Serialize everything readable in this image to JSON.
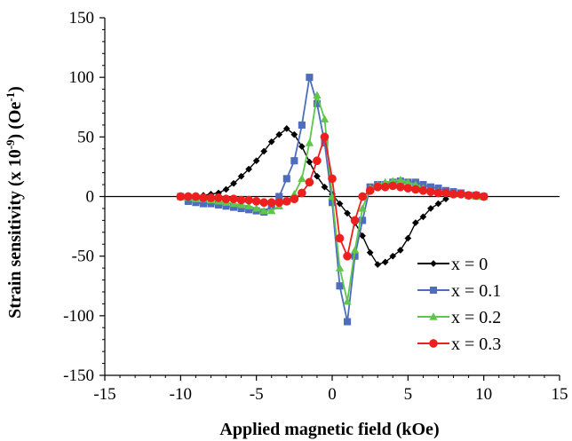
{
  "chart_data": {
    "type": "line",
    "xlabel": "Applied magnetic field  (kOe)",
    "ylabel": "Strain sensitivity  (x 10",
    "ylabel_sup1": "-9",
    "ylabel_mid": ") (Oe",
    "ylabel_sup2": "-1",
    "ylabel_end": ")",
    "xlim": [
      -15,
      15
    ],
    "ylim": [
      -150,
      150
    ],
    "xticks": [
      -15,
      -10,
      -5,
      0,
      5,
      10,
      15
    ],
    "yticks": [
      -150,
      -100,
      -50,
      0,
      50,
      100,
      150
    ],
    "grid": false,
    "legend_position": "bottom-right",
    "series": [
      {
        "name": "x = 0",
        "color": "#000000",
        "marker": "diamond",
        "x": [
          -10,
          -9.5,
          -9,
          -8.5,
          -8,
          -7.5,
          -7,
          -6.5,
          -6,
          -5.5,
          -5,
          -4.5,
          -4,
          -3.5,
          -3,
          -2.5,
          -2,
          -1.5,
          -1,
          -0.5,
          0,
          0.5,
          1,
          1.5,
          2,
          2.5,
          3,
          3.5,
          4,
          4.5,
          5,
          5.5,
          6,
          6.5,
          7,
          7.5
        ],
        "y": [
          0,
          0,
          0,
          1,
          2,
          3,
          6,
          11,
          17,
          23,
          30,
          38,
          46,
          52,
          57,
          52,
          42,
          29,
          17,
          8,
          2,
          -6,
          -14,
          -22,
          -33,
          -47,
          -57,
          -55,
          -50,
          -45,
          -35,
          -22,
          -17,
          -10,
          -6,
          -2
        ]
      },
      {
        "name": "x = 0.1",
        "color": "#4f6dbd",
        "marker": "square",
        "x": [
          -10,
          -9.5,
          -9,
          -8.5,
          -8,
          -7.5,
          -7,
          -6.5,
          -6,
          -5.5,
          -5,
          -4.5,
          -4,
          -3.5,
          -3,
          -2.5,
          -2,
          -1.5,
          -1,
          -0.5,
          0,
          0.5,
          1,
          1.5,
          2,
          2.5,
          3,
          3.5,
          4,
          4.5,
          5,
          5.5,
          6,
          6.5,
          7,
          7.5,
          8,
          8.5,
          9,
          9.5,
          10
        ],
        "y": [
          0,
          -4,
          -5,
          -6,
          -6,
          -7,
          -8,
          -9,
          -10,
          -11,
          -12,
          -13,
          -8,
          0,
          15,
          30,
          60,
          100,
          78,
          45,
          -5,
          -75,
          -105,
          -50,
          -20,
          8,
          10,
          10,
          12,
          13,
          12,
          12,
          10,
          8,
          7,
          5,
          4,
          3,
          1,
          1,
          0
        ]
      },
      {
        "name": "x = 0.2",
        "color": "#5ec648",
        "marker": "triangle",
        "x": [
          -10,
          -9.5,
          -9,
          -8.5,
          -8,
          -7.5,
          -7,
          -6.5,
          -6,
          -5.5,
          -5,
          -4.5,
          -4,
          -3.5,
          -3,
          -2.5,
          -2,
          -1.5,
          -1,
          -0.5,
          0,
          0.5,
          1,
          1.5,
          2,
          2.5,
          3,
          3.5,
          4,
          4.5,
          5,
          5.5,
          6,
          6.5,
          7,
          7.5,
          8,
          8.5,
          9,
          9.5,
          10
        ],
        "y": [
          0,
          -1,
          -2,
          -2,
          -3,
          -4,
          -5,
          -6,
          -7,
          -8,
          -10,
          -12,
          -12,
          -8,
          -4,
          2,
          15,
          45,
          85,
          65,
          0,
          -60,
          -88,
          -45,
          -10,
          7,
          10,
          12,
          13,
          14,
          12,
          10,
          7,
          5,
          4,
          3,
          2,
          2,
          1,
          0,
          0
        ]
      },
      {
        "name": "x = 0.3",
        "color": "#ee1f1f",
        "marker": "circle",
        "x": [
          -10,
          -9.5,
          -9,
          -8.5,
          -8,
          -7.5,
          -7,
          -6.5,
          -6,
          -5.5,
          -5,
          -4.5,
          -4,
          -3.5,
          -3,
          -2.5,
          -2,
          -1.5,
          -1,
          -0.5,
          0,
          0.5,
          1,
          1.5,
          2,
          2.5,
          3,
          3.5,
          4,
          4.5,
          5,
          5.5,
          6,
          6.5,
          7,
          7.5,
          8,
          8.5,
          9,
          9.5,
          10
        ],
        "y": [
          0,
          0,
          0,
          -1,
          -1,
          -1,
          -2,
          -2,
          -3,
          -3,
          -4,
          -5,
          -5,
          -5,
          -4,
          -2,
          3,
          12,
          30,
          50,
          15,
          -35,
          -50,
          -20,
          0,
          5,
          8,
          8,
          9,
          8,
          7,
          6,
          5,
          4,
          3,
          3,
          2,
          2,
          1,
          1,
          0
        ]
      }
    ]
  }
}
